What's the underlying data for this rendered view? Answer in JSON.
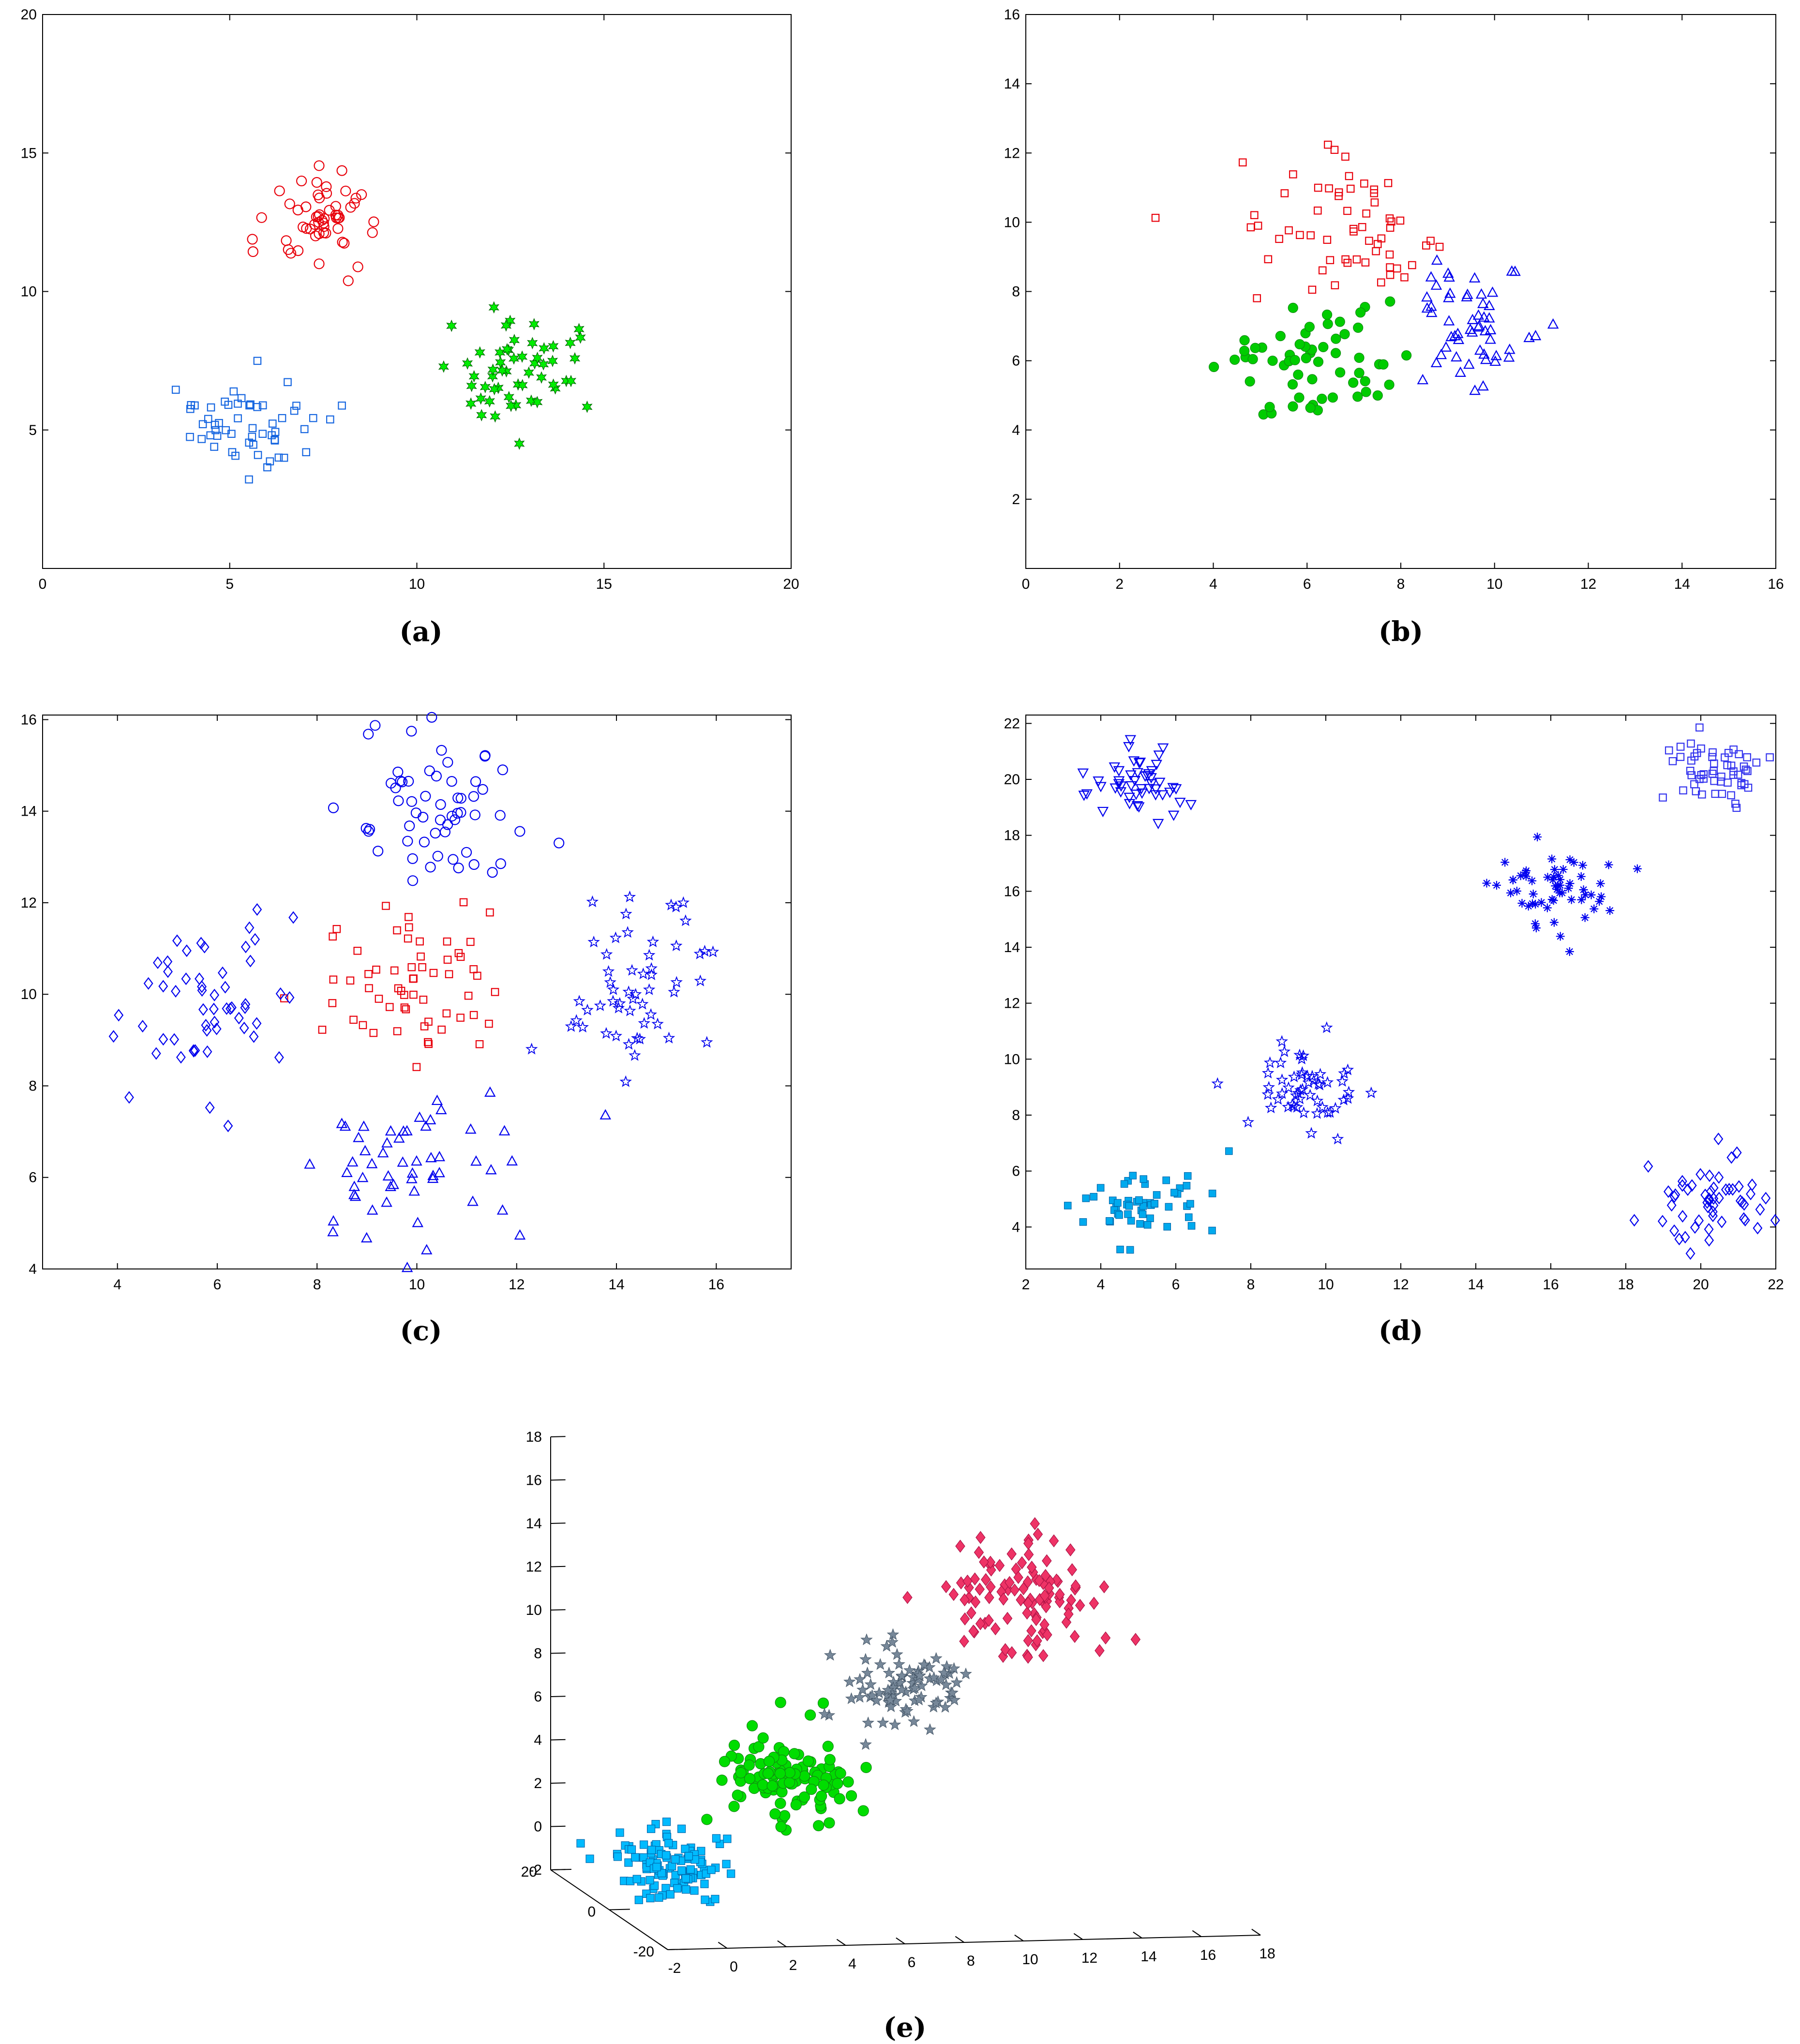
{
  "figure": {
    "panels": [
      {
        "key": "a",
        "caption": "(a)"
      },
      {
        "key": "b",
        "caption": "(b)"
      },
      {
        "key": "c",
        "caption": "(c)"
      },
      {
        "key": "d",
        "caption": "(d)"
      },
      {
        "key": "e",
        "caption": "(e)"
      }
    ]
  },
  "chart_data": [
    {
      "id": "a",
      "type": "scatter",
      "title": "",
      "xlabel": "",
      "ylabel": "",
      "caption": "(a)",
      "xlim": [
        0,
        20
      ],
      "ylim": [
        0,
        20
      ],
      "xticks": [
        "0",
        "5",
        "10",
        "15",
        "20"
      ],
      "yticks": [
        "5",
        "10",
        "15",
        "20"
      ],
      "series": [
        {
          "name": "cluster-red-circles",
          "marker": "circle",
          "color": "#e8000b",
          "filled": false,
          "center": [
            7.4,
            12.5
          ],
          "spread": [
            0.85,
            0.95
          ],
          "n": 55,
          "seed": 11
        },
        {
          "name": "cluster-green-stars",
          "marker": "hexstar",
          "color": "#00ee00",
          "filled": true,
          "center": [
            12.5,
            7.2
          ],
          "spread": [
            0.95,
            1.1
          ],
          "n": 55,
          "seed": 12
        },
        {
          "name": "cluster-blue-squares",
          "marker": "square",
          "color": "#1565e0",
          "filled": false,
          "center": [
            5.6,
            5.3
          ],
          "spread": [
            1.0,
            0.9
          ],
          "n": 55,
          "seed": 13
        }
      ]
    },
    {
      "id": "b",
      "type": "scatter",
      "title": "",
      "xlabel": "",
      "ylabel": "",
      "caption": "(b)",
      "xlim": [
        0,
        16
      ],
      "ylim": [
        0,
        16
      ],
      "xticks": [
        "0",
        "2",
        "4",
        "6",
        "8",
        "10",
        "12",
        "14",
        "16"
      ],
      "yticks": [
        "2",
        "4",
        "6",
        "8",
        "10",
        "12",
        "14",
        "16"
      ],
      "series": [
        {
          "name": "cluster-red-squares",
          "marker": "square",
          "color": "#e8000b",
          "filled": false,
          "center": [
            6.8,
            9.9
          ],
          "spread": [
            1.2,
            1.1
          ],
          "n": 60,
          "seed": 21
        },
        {
          "name": "cluster-green-dots",
          "marker": "circle",
          "color": "#00cc00",
          "filled": true,
          "center": [
            6.1,
            5.9
          ],
          "spread": [
            1.1,
            0.9
          ],
          "n": 60,
          "seed": 22
        },
        {
          "name": "cluster-blue-triangles",
          "marker": "triangle",
          "color": "#0000ee",
          "filled": false,
          "center": [
            9.5,
            6.9
          ],
          "spread": [
            0.8,
            1.0
          ],
          "n": 55,
          "seed": 23
        }
      ]
    },
    {
      "id": "c",
      "type": "scatter",
      "title": "",
      "xlabel": "",
      "ylabel": "",
      "caption": "(c)",
      "xlim": [
        2.5,
        17.5
      ],
      "ylim": [
        4,
        16.1
      ],
      "xticks": [
        "4",
        "6",
        "8",
        "10",
        "12",
        "14",
        "16"
      ],
      "yticks": [
        "4",
        "6",
        "8",
        "10",
        "12",
        "14",
        "16"
      ],
      "series": [
        {
          "name": "cluster-blue-circles-top",
          "marker": "circle",
          "color": "#0000ee",
          "filled": false,
          "center": [
            10.2,
            14
          ],
          "spread": [
            1.0,
            1.1
          ],
          "n": 60,
          "seed": 31
        },
        {
          "name": "cluster-red-squares-center",
          "marker": "square",
          "color": "#e8000b",
          "filled": false,
          "center": [
            9.9,
            10
          ],
          "spread": [
            1.0,
            1.0
          ],
          "n": 60,
          "seed": 32
        },
        {
          "name": "cluster-blue-diamonds-left",
          "marker": "diamond",
          "color": "#0000ee",
          "filled": false,
          "center": [
            5.9,
            9.9
          ],
          "spread": [
            0.95,
            1.0
          ],
          "n": 55,
          "seed": 33
        },
        {
          "name": "cluster-blue-stars-right",
          "marker": "star",
          "color": "#0000ee",
          "filled": false,
          "center": [
            14.2,
            10.1
          ],
          "spread": [
            0.85,
            1.0
          ],
          "n": 55,
          "seed": 34
        },
        {
          "name": "cluster-blue-triangles-bottom",
          "marker": "triangle",
          "color": "#0000ee",
          "filled": false,
          "center": [
            10,
            6.2
          ],
          "spread": [
            1.0,
            1.0
          ],
          "n": 55,
          "seed": 35
        }
      ]
    },
    {
      "id": "d",
      "type": "scatter",
      "title": "",
      "xlabel": "",
      "ylabel": "",
      "caption": "(d)",
      "xlim": [
        2,
        22
      ],
      "ylim": [
        2.5,
        22.3
      ],
      "xticks": [
        "2",
        "4",
        "6",
        "8",
        "10",
        "12",
        "14",
        "16",
        "18",
        "20",
        "22"
      ],
      "yticks": [
        "4",
        "6",
        "8",
        "10",
        "12",
        "14",
        "16",
        "18",
        "20",
        "22"
      ],
      "series": [
        {
          "name": "cluster-blue-down-triangles",
          "marker": "triangledown",
          "color": "#0000ee",
          "filled": false,
          "center": [
            5,
            19.8
          ],
          "spread": [
            0.8,
            0.75
          ],
          "n": 50,
          "seed": 41
        },
        {
          "name": "cluster-blue-squares-topright",
          "marker": "square",
          "color": "#3333ee",
          "filled": false,
          "center": [
            20.3,
            20.3
          ],
          "spread": [
            0.8,
            0.8
          ],
          "n": 55,
          "seed": 42
        },
        {
          "name": "cluster-blue-asterisks",
          "marker": "asterisk",
          "color": "#0000ee",
          "filled": false,
          "center": [
            16,
            16
          ],
          "spread": [
            0.9,
            0.85
          ],
          "n": 60,
          "seed": 43
        },
        {
          "name": "cluster-blue-stars-mid",
          "marker": "star",
          "color": "#0000ee",
          "filled": false,
          "center": [
            9.2,
            9
          ],
          "spread": [
            0.8,
            0.85
          ],
          "n": 55,
          "seed": 44
        },
        {
          "name": "cluster-cyan-squares",
          "marker": "square",
          "color": "#00aaee",
          "filled": true,
          "center": [
            5.1,
            4.9
          ],
          "spread": [
            0.85,
            0.9
          ],
          "n": 55,
          "seed": 45
        },
        {
          "name": "cluster-blue-diamonds-bottomright",
          "marker": "diamond",
          "color": "#0000ee",
          "filled": false,
          "center": [
            20.3,
            4.9
          ],
          "spread": [
            0.85,
            0.85
          ],
          "n": 55,
          "seed": 46
        }
      ]
    },
    {
      "id": "e",
      "type": "scatter",
      "title": "",
      "xlabel": "",
      "ylabel": "",
      "caption": "(e)",
      "projection": "3d",
      "xlim": [
        -2,
        18
      ],
      "ylim": [
        -20,
        20
      ],
      "zlim": [
        -2,
        18
      ],
      "xticks": [
        "-2",
        "0",
        "2",
        "4",
        "6",
        "8",
        "10",
        "12",
        "14",
        "16",
        "18"
      ],
      "yticks": [
        "-20",
        "0",
        "20"
      ],
      "zticks": [
        "-2",
        "0",
        "2",
        "4",
        "6",
        "8",
        "10",
        "12",
        "14",
        "16",
        "18"
      ],
      "series": [
        {
          "name": "cluster-cyan-squares-3d",
          "marker": "square",
          "color": "#00bbff",
          "filled": true,
          "center": [
            0,
            0,
            0
          ],
          "spread": [
            0.9,
            4,
            0.7
          ],
          "n": 110,
          "seed": 51
        },
        {
          "name": "cluster-green-dots-3d",
          "marker": "circle",
          "color": "#00dd00",
          "filled": true,
          "center": [
            4,
            0,
            4
          ],
          "spread": [
            1.1,
            4,
            1.1
          ],
          "n": 110,
          "seed": 52
        },
        {
          "name": "cluster-gray-stars-3d",
          "marker": "star",
          "color": "#778899",
          "filled": true,
          "center": [
            8,
            0,
            8
          ],
          "spread": [
            0.9,
            4,
            0.9
          ],
          "n": 90,
          "seed": 53
        },
        {
          "name": "cluster-red-diamonds-3d",
          "marker": "diamond",
          "color": "#ee3366",
          "filled": true,
          "center": [
            12,
            0,
            12
          ],
          "spread": [
            1.2,
            4,
            1.2
          ],
          "n": 110,
          "seed": 54
        }
      ]
    }
  ]
}
